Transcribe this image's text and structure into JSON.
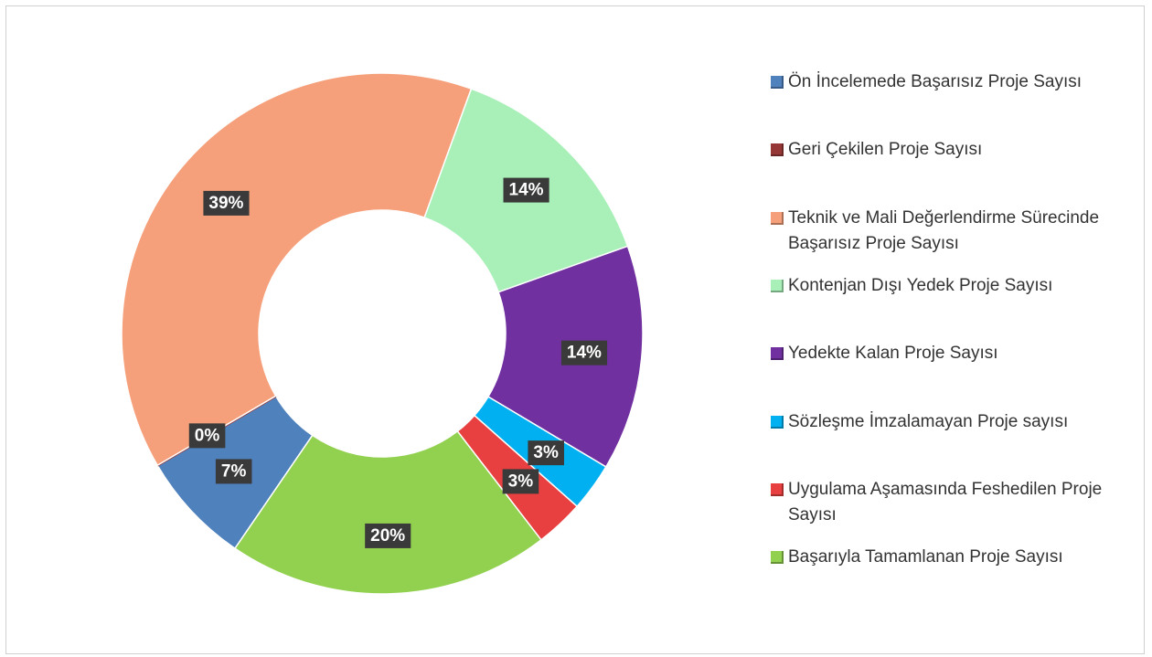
{
  "chart_data": {
    "type": "doughnut",
    "categories": [
      "Ön İncelemede Başarısız Proje Sayısı",
      "Geri Çekilen Proje Sayısı",
      "Teknik ve Mali Değerlendirme Sürecinde Başarısız Proje Sayısı",
      "Kontenjan Dışı Yedek Proje Sayısı",
      "Yedekte Kalan Proje Sayısı",
      "Sözleşme İmzalamayan Proje sayısı",
      "Uygulama Aşamasında Feshedilen Proje Sayısı",
      "Başarıyla Tamamlanan Proje Sayısı"
    ],
    "values": [
      7,
      0,
      39,
      14,
      14,
      3,
      3,
      20
    ],
    "value_labels": [
      "7%",
      "0%",
      "39%",
      "14%",
      "14%",
      "3%",
      "3%",
      "20%"
    ],
    "colors": [
      "#4f81bd",
      "#953735",
      "#f5a07a",
      "#a8f0b8",
      "#7030a0",
      "#00b0f0",
      "#e84040",
      "#92d050"
    ],
    "legend": "right"
  }
}
